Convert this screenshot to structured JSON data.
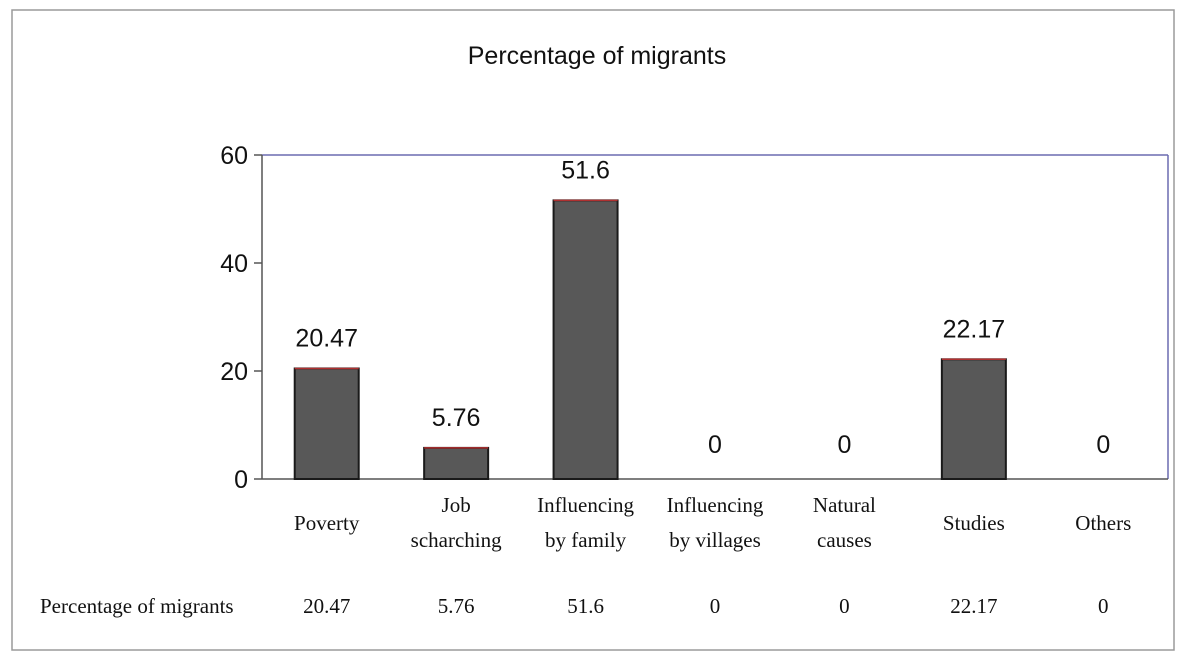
{
  "chart_data": {
    "type": "bar",
    "title": "Percentage of migrants",
    "categories": [
      [
        "Poverty"
      ],
      [
        "Job",
        "scharching"
      ],
      [
        "Influencing",
        "by family"
      ],
      [
        "Influencing",
        "by villages"
      ],
      [
        "Natural",
        "causes"
      ],
      [
        "Studies"
      ],
      [
        "Others"
      ]
    ],
    "series": [
      {
        "name": "Percentage of migrants",
        "values": [
          20.47,
          5.76,
          51.6,
          0,
          0,
          22.17,
          0
        ]
      }
    ],
    "ylim": [
      0,
      60
    ],
    "yticks": [
      0,
      20,
      40,
      60
    ],
    "data_table": true,
    "colors": {
      "bar": "#585858",
      "bar_stroke": "#1a1a1a",
      "bar_accent": "#b03030",
      "plot_border": "#6b6bb0"
    }
  }
}
